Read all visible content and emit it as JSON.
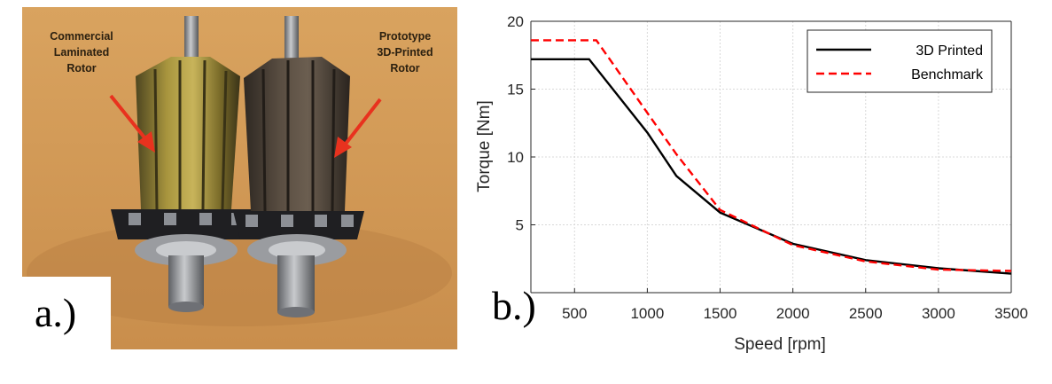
{
  "panel_a": {
    "label": "a.)",
    "captions": {
      "left": [
        "Commercial",
        "Laminated",
        "Rotor"
      ],
      "right": [
        "Prototype",
        "3D-Printed",
        "Rotor"
      ]
    },
    "colors": {
      "background": "#d8a15c",
      "rotor_left": "#8a7a30",
      "rotor_right": "#4a4036",
      "arrow": "#e8321e"
    }
  },
  "panel_b": {
    "label": "b.)"
  },
  "chart_data": {
    "type": "line",
    "title": "",
    "xlabel": "Speed [rpm]",
    "ylabel": "Torque [Nm]",
    "xlim": [
      200,
      3500
    ],
    "ylim": [
      0,
      20
    ],
    "xticks": [
      500,
      1000,
      1500,
      2000,
      2500,
      3000,
      3500
    ],
    "yticks": [
      5,
      10,
      15,
      20
    ],
    "grid": true,
    "legend_position": "top-right",
    "series": [
      {
        "name": "3D Printed",
        "color": "#000000",
        "style": "solid",
        "x": [
          200,
          600,
          1000,
          1200,
          1500,
          2000,
          2500,
          3000,
          3500
        ],
        "y": [
          17.2,
          17.2,
          11.8,
          8.6,
          5.9,
          3.6,
          2.4,
          1.8,
          1.4
        ]
      },
      {
        "name": "Benchmark",
        "color": "#ff0000",
        "style": "dashed",
        "x": [
          200,
          650,
          1200,
          1500,
          2000,
          2500,
          3000,
          3500
        ],
        "y": [
          18.6,
          18.6,
          10.2,
          6.1,
          3.5,
          2.3,
          1.7,
          1.6
        ]
      }
    ]
  }
}
